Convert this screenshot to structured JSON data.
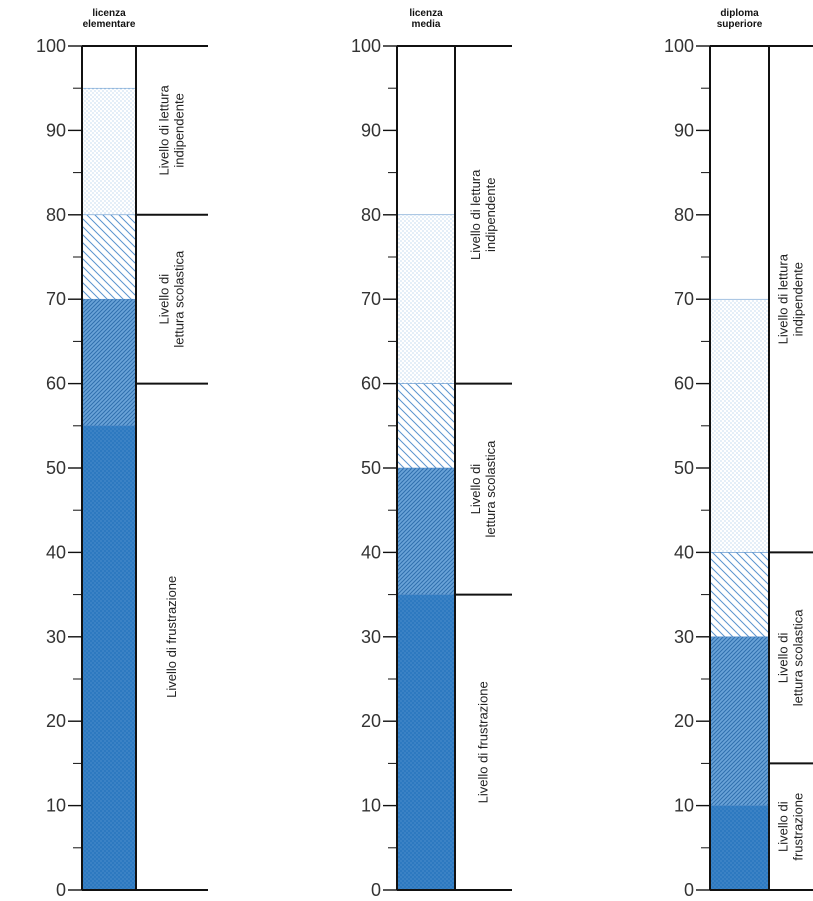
{
  "colors": {
    "frustrazione": "#2d79c0",
    "transition": "#6aa3d8",
    "scolastica": "#8fbce6",
    "indipendente": "#8fbce6",
    "axis": "#111111"
  },
  "chart_data": [
    {
      "type": "stacked-column",
      "title": "licenza elementare",
      "title_lines": [
        "licenza",
        "elementare"
      ],
      "ylim": [
        0,
        100
      ],
      "yticks": [
        0,
        10,
        20,
        30,
        40,
        50,
        60,
        70,
        80,
        90,
        100
      ],
      "bands": [
        {
          "kind": "frustrazione",
          "from": 0,
          "to": 55
        },
        {
          "kind": "transition",
          "from": 55,
          "to": 70
        },
        {
          "kind": "scolastica",
          "from": 70,
          "to": 80
        },
        {
          "kind": "indipendente",
          "from": 80,
          "to": 95
        }
      ],
      "zones": [
        {
          "from": 0,
          "to": 60,
          "lines": [
            "Livello di frustrazione"
          ]
        },
        {
          "from": 60,
          "to": 80,
          "lines": [
            "Livello di",
            "lettura scolastica"
          ]
        },
        {
          "from": 80,
          "to": 100,
          "lines": [
            "Livello di lettura",
            "indipendente"
          ]
        }
      ]
    },
    {
      "type": "stacked-column",
      "title": "licenza media",
      "title_lines": [
        "licenza",
        "media"
      ],
      "ylim": [
        0,
        100
      ],
      "yticks": [
        0,
        10,
        20,
        30,
        40,
        50,
        60,
        70,
        80,
        90,
        100
      ],
      "bands": [
        {
          "kind": "frustrazione",
          "from": 0,
          "to": 35
        },
        {
          "kind": "transition",
          "from": 35,
          "to": 50
        },
        {
          "kind": "scolastica",
          "from": 50,
          "to": 60
        },
        {
          "kind": "indipendente",
          "from": 60,
          "to": 80
        }
      ],
      "zones": [
        {
          "from": 0,
          "to": 35,
          "lines": [
            "Livello di frustrazione"
          ]
        },
        {
          "from": 35,
          "to": 60,
          "lines": [
            "Livello di",
            "lettura scolastica"
          ]
        },
        {
          "from": 60,
          "to": 100,
          "lines": [
            "Livello di lettura",
            "indipendente"
          ]
        }
      ]
    },
    {
      "type": "stacked-column",
      "title": "diploma superiore",
      "title_lines": [
        "diploma",
        "superiore"
      ],
      "ylim": [
        0,
        100
      ],
      "yticks": [
        0,
        10,
        20,
        30,
        40,
        50,
        60,
        70,
        80,
        90,
        100
      ],
      "bands": [
        {
          "kind": "frustrazione",
          "from": 0,
          "to": 10
        },
        {
          "kind": "transition",
          "from": 10,
          "to": 30
        },
        {
          "kind": "scolastica",
          "from": 30,
          "to": 40
        },
        {
          "kind": "indipendente",
          "from": 40,
          "to": 70
        }
      ],
      "zones": [
        {
          "from": 0,
          "to": 15,
          "lines": [
            "Livello di",
            "frustrazione"
          ]
        },
        {
          "from": 15,
          "to": 40,
          "lines": [
            "Livello di",
            "lettura scolastica"
          ]
        },
        {
          "from": 40,
          "to": 100,
          "lines": [
            "Livello di lettura",
            "indipendente"
          ]
        }
      ]
    }
  ]
}
